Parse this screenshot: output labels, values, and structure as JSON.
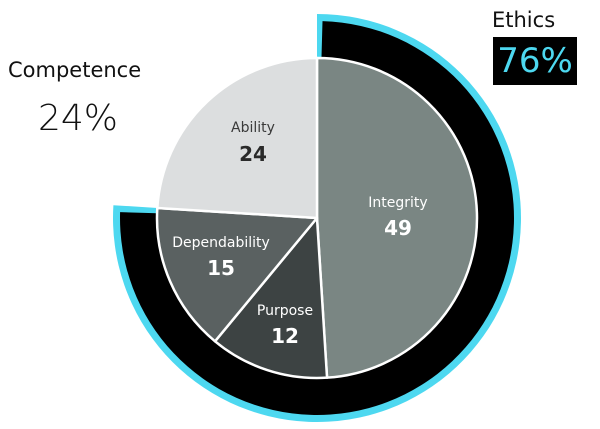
{
  "chart_data": {
    "type": "pie",
    "title": "",
    "categories": [
      "Integrity",
      "Purpose",
      "Dependability",
      "Ability"
    ],
    "values": [
      49,
      12,
      15,
      24
    ],
    "colors": [
      "#7a8683",
      "#3d4343",
      "#5a6161",
      "#dcdedf"
    ],
    "label_colors": [
      "#ffffff",
      "#ffffff",
      "#ffffff",
      "#3a3a3a"
    ],
    "start_angle": "top (12 o'clock), clockwise",
    "outer_ring": {
      "name": "Ethics",
      "value_percent": 76,
      "covers": [
        "Integrity",
        "Purpose",
        "Dependability"
      ],
      "fill": "#000000",
      "edge_color": "#4dd8f0"
    },
    "annotations": [
      {
        "label": "Competence",
        "value": "24%",
        "position": "left"
      },
      {
        "label": "Ethics",
        "value": "76%",
        "position": "top-right"
      }
    ]
  },
  "labels": {
    "competence_title": "Competence",
    "competence_value": "24%",
    "ethics_title": "Ethics",
    "ethics_value": "76%"
  },
  "slices": [
    {
      "label": "Integrity",
      "value": "49"
    },
    {
      "label": "Purpose",
      "value": "12"
    },
    {
      "label": "Dependability",
      "value": "15"
    },
    {
      "label": "Ability",
      "value": "24"
    }
  ],
  "colors": {
    "accent_cyan": "#4dd8f0",
    "ring_black": "#000000"
  }
}
